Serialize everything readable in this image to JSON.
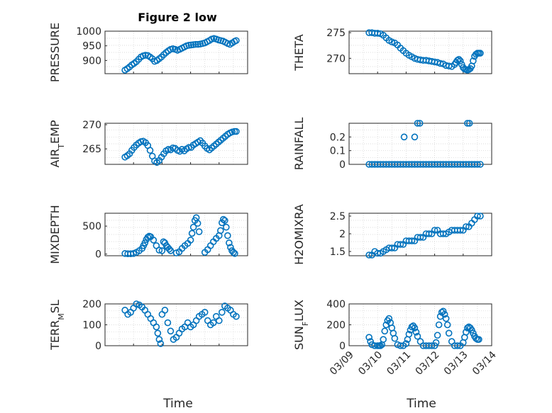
{
  "figure": {
    "title": "Figure 2 low",
    "xlabel": "Time",
    "marker_color": "#0072BD"
  },
  "chart_data": [
    {
      "type": "scatter",
      "ylabel": "PRESSURE",
      "ylim": [
        855,
        1000
      ],
      "yticks": [
        "1000",
        "950",
        "900"
      ],
      "ytick_values": [
        1000,
        950,
        900
      ],
      "xlim": [
        0,
        5
      ],
      "xticks": [],
      "x": [
        0.7,
        0.78,
        0.86,
        0.94,
        1.02,
        1.1,
        1.18,
        1.26,
        1.34,
        1.42,
        1.5,
        1.58,
        1.66,
        1.74,
        1.82,
        1.9,
        1.98,
        2.06,
        2.14,
        2.22,
        2.3,
        2.38,
        2.46,
        2.54,
        2.62,
        2.7,
        2.78,
        2.86,
        2.94,
        3.02,
        3.1,
        3.18,
        3.26,
        3.34,
        3.42,
        3.5,
        3.58,
        3.66,
        3.74,
        3.82,
        3.9,
        3.98,
        4.06,
        4.14,
        4.22,
        4.3,
        4.38,
        4.46,
        4.54,
        4.6
      ],
      "y": [
        867,
        872,
        878,
        885,
        890,
        896,
        904,
        912,
        916,
        918,
        917,
        912,
        906,
        897,
        900,
        906,
        912,
        920,
        927,
        933,
        938,
        940,
        938,
        935,
        938,
        942,
        946,
        950,
        952,
        953,
        954,
        955,
        955,
        956,
        958,
        960,
        964,
        968,
        973,
        975,
        973,
        970,
        968,
        966,
        962,
        958,
        955,
        960,
        965,
        968
      ]
    },
    {
      "type": "scatter",
      "ylabel": "THETA",
      "ylim": [
        267,
        275.3
      ],
      "yticks": [
        "275",
        "270"
      ],
      "ytick_values": [
        275,
        270
      ],
      "xlim": [
        0,
        5
      ],
      "xticks": [],
      "x": [
        0.7,
        0.8,
        0.9,
        1.0,
        1.1,
        1.2,
        1.3,
        1.4,
        1.5,
        1.6,
        1.7,
        1.8,
        1.9,
        2.0,
        2.1,
        2.2,
        2.3,
        2.4,
        2.5,
        2.6,
        2.7,
        2.8,
        2.9,
        3.0,
        3.1,
        3.2,
        3.3,
        3.4,
        3.5,
        3.6,
        3.7,
        3.75,
        3.8,
        3.85,
        3.9,
        3.95,
        4.0,
        4.05,
        4.1,
        4.15,
        4.2,
        4.25,
        4.3,
        4.35,
        4.4,
        4.45,
        4.5,
        4.55,
        4.6
      ],
      "y": [
        275,
        275,
        274.9,
        274.9,
        274.8,
        274.5,
        274,
        273.5,
        273.2,
        273,
        272.6,
        272,
        271.5,
        271,
        270.6,
        270.3,
        270,
        269.8,
        269.7,
        269.6,
        269.6,
        269.5,
        269.4,
        269.3,
        269.2,
        269,
        268.9,
        268.6,
        268.5,
        268.4,
        268.8,
        269.2,
        269.6,
        269.8,
        269.5,
        268.8,
        268.2,
        267.9,
        267.8,
        267.7,
        267.8,
        268,
        268.5,
        269.5,
        270.4,
        270.8,
        271,
        271,
        271
      ]
    },
    {
      "type": "scatter",
      "ylabel": "AIR_TEMP",
      "ylim": [
        261.8,
        270.3
      ],
      "yticks": [
        "270",
        "265"
      ],
      "ytick_values": [
        270,
        265
      ],
      "xlim": [
        0,
        5
      ],
      "xticks": [],
      "x": [
        0.7,
        0.78,
        0.86,
        0.94,
        1.02,
        1.1,
        1.18,
        1.26,
        1.34,
        1.42,
        1.5,
        1.58,
        1.66,
        1.74,
        1.82,
        1.9,
        1.98,
        2.06,
        2.14,
        2.22,
        2.3,
        2.38,
        2.46,
        2.54,
        2.62,
        2.7,
        2.78,
        2.86,
        2.94,
        3.02,
        3.1,
        3.18,
        3.26,
        3.34,
        3.42,
        3.5,
        3.58,
        3.66,
        3.74,
        3.82,
        3.9,
        3.98,
        4.06,
        4.14,
        4.22,
        4.3,
        4.38,
        4.46,
        4.54,
        4.6
      ],
      "y": [
        263.3,
        263.6,
        264,
        264.7,
        265.3,
        265.8,
        266.2,
        266.5,
        266.6,
        266.3,
        265.7,
        264.7,
        263.5,
        262.5,
        262.2,
        262.6,
        263.3,
        264,
        264.6,
        264.9,
        264.8,
        265.2,
        265.1,
        264.7,
        264.5,
        264.9,
        264.6,
        265,
        265.3,
        265.3,
        265.8,
        266.1,
        266.4,
        266.7,
        266.2,
        265.6,
        265.1,
        264.8,
        265.2,
        265.6,
        266,
        266.4,
        266.8,
        267.2,
        267.6,
        268,
        268.3,
        268.5,
        268.6,
        268.6
      ]
    },
    {
      "type": "scatter",
      "ylabel": "RAINFALL",
      "ylim": [
        0,
        0.3
      ],
      "yticks": [
        "0.2",
        "0.1",
        "0"
      ],
      "ytick_values": [
        0.2,
        0.1,
        0
      ],
      "xlim": [
        0,
        5
      ],
      "xticks": [],
      "x": [
        0.7,
        0.8,
        0.9,
        1.0,
        1.1,
        1.2,
        1.3,
        1.4,
        1.5,
        1.6,
        1.7,
        1.8,
        1.9,
        2.0,
        2.1,
        2.2,
        2.3,
        2.4,
        2.5,
        2.6,
        2.7,
        2.8,
        2.9,
        3.0,
        3.1,
        3.2,
        3.3,
        3.4,
        3.5,
        3.6,
        3.7,
        3.8,
        3.9,
        4.0,
        4.1,
        4.2,
        4.3,
        4.4,
        4.5,
        4.6,
        1.93,
        2.3,
        2.4,
        2.48,
        4.15,
        4.22
      ],
      "y": [
        0,
        0,
        0,
        0,
        0,
        0,
        0,
        0,
        0,
        0,
        0,
        0,
        0,
        0,
        0,
        0,
        0,
        0,
        0,
        0,
        0,
        0,
        0,
        0,
        0,
        0,
        0,
        0,
        0,
        0,
        0,
        0,
        0,
        0,
        0,
        0,
        0,
        0,
        0,
        0,
        0.2,
        0.2,
        0.3,
        0.3,
        0.3,
        0.3
      ]
    },
    {
      "type": "scatter",
      "ylabel": "MIXDEPTH",
      "ylim": [
        -30,
        730
      ],
      "yticks": [
        "500",
        "0"
      ],
      "ytick_values": [
        500,
        0
      ],
      "xlim": [
        0,
        5
      ],
      "xticks": [],
      "x": [
        0.7,
        0.8,
        0.9,
        1.0,
        1.1,
        1.2,
        1.3,
        1.35,
        1.4,
        1.45,
        1.5,
        1.55,
        1.6,
        1.7,
        1.8,
        1.9,
        2.0,
        2.05,
        2.1,
        2.15,
        2.2,
        2.25,
        2.3,
        2.5,
        2.6,
        2.7,
        2.8,
        2.9,
        3.0,
        3.05,
        3.1,
        3.15,
        3.2,
        3.25,
        3.3,
        3.5,
        3.6,
        3.7,
        3.8,
        3.9,
        4.0,
        4.05,
        4.1,
        4.15,
        4.2,
        4.25,
        4.3,
        4.35,
        4.4,
        4.45,
        4.5,
        4.55
      ],
      "y": [
        10,
        5,
        5,
        10,
        30,
        60,
        100,
        150,
        200,
        260,
        300,
        320,
        310,
        250,
        150,
        70,
        60,
        220,
        200,
        150,
        120,
        90,
        60,
        20,
        40,
        100,
        150,
        190,
        250,
        370,
        480,
        600,
        650,
        550,
        400,
        30,
        80,
        150,
        220,
        280,
        330,
        420,
        560,
        620,
        600,
        480,
        330,
        200,
        120,
        60,
        30,
        10
      ]
    },
    {
      "type": "scatter",
      "ylabel": "H2OMIXRA",
      "ylim": [
        1.38,
        2.58
      ],
      "yticks": [
        "2.5",
        "2",
        "1.5"
      ],
      "ytick_values": [
        2.5,
        2,
        1.5
      ],
      "xlim": [
        0,
        5
      ],
      "xticks": [],
      "x": [
        0.7,
        0.8,
        0.9,
        1.0,
        1.1,
        1.2,
        1.3,
        1.4,
        1.5,
        1.6,
        1.7,
        1.8,
        1.9,
        2.0,
        2.1,
        2.2,
        2.3,
        2.4,
        2.5,
        2.6,
        2.7,
        2.8,
        2.9,
        3.0,
        3.1,
        3.2,
        3.3,
        3.4,
        3.5,
        3.6,
        3.7,
        3.8,
        3.9,
        4.0,
        4.1,
        4.2,
        4.3,
        4.4,
        4.5,
        4.6
      ],
      "y": [
        1.4,
        1.4,
        1.5,
        1.45,
        1.45,
        1.5,
        1.55,
        1.6,
        1.6,
        1.6,
        1.7,
        1.7,
        1.7,
        1.8,
        1.8,
        1.8,
        1.8,
        1.9,
        1.9,
        1.9,
        2.0,
        2.0,
        2.0,
        2.1,
        2.1,
        2.0,
        2.0,
        2.0,
        2.05,
        2.1,
        2.1,
        2.1,
        2.1,
        2.1,
        2.2,
        2.2,
        2.3,
        2.4,
        2.5,
        2.5
      ]
    },
    {
      "type": "scatter",
      "ylabel": "TERR_MSL",
      "ylim": [
        0,
        200
      ],
      "yticks": [
        "200",
        "100",
        "0"
      ],
      "ytick_values": [
        200,
        100,
        0
      ],
      "xlim": [
        0,
        5
      ],
      "xticks": [],
      "x": [
        0.7,
        0.8,
        0.9,
        1.0,
        1.1,
        1.2,
        1.3,
        1.4,
        1.5,
        1.6,
        1.7,
        1.8,
        1.85,
        1.9,
        1.95,
        2.0,
        2.1,
        2.2,
        2.3,
        2.4,
        2.5,
        2.6,
        2.7,
        2.8,
        2.9,
        3.0,
        3.1,
        3.2,
        3.3,
        3.4,
        3.5,
        3.6,
        3.7,
        3.8,
        3.9,
        4.0,
        4.1,
        4.2,
        4.3,
        4.4,
        4.5,
        4.6
      ],
      "y": [
        170,
        150,
        160,
        180,
        200,
        195,
        185,
        170,
        150,
        130,
        110,
        90,
        60,
        30,
        10,
        150,
        170,
        110,
        70,
        30,
        40,
        60,
        80,
        90,
        110,
        90,
        100,
        120,
        140,
        150,
        160,
        120,
        100,
        110,
        140,
        120,
        160,
        190,
        180,
        170,
        150,
        140
      ]
    },
    {
      "type": "scatter",
      "ylabel": "SUN_FLUX",
      "ylim": [
        0,
        400
      ],
      "yticks": [
        "400",
        "200",
        "0"
      ],
      "ytick_values": [
        400,
        200,
        0
      ],
      "xlim": [
        0,
        5
      ],
      "xticks": [
        "03/09",
        "03/10",
        "03/11",
        "03/12",
        "03/13",
        "03/14"
      ],
      "tick_values": [
        0,
        1,
        2,
        3,
        4,
        5
      ],
      "x": [
        0.7,
        0.75,
        0.8,
        0.9,
        1.0,
        1.05,
        1.1,
        1.15,
        1.2,
        1.25,
        1.3,
        1.35,
        1.4,
        1.45,
        1.5,
        1.55,
        1.6,
        1.7,
        1.8,
        1.9,
        2.0,
        2.05,
        2.1,
        2.15,
        2.2,
        2.25,
        2.3,
        2.35,
        2.4,
        2.5,
        2.6,
        2.7,
        2.8,
        2.9,
        3.0,
        3.05,
        3.1,
        3.15,
        3.2,
        3.25,
        3.3,
        3.35,
        3.4,
        3.45,
        3.5,
        3.6,
        3.7,
        3.8,
        3.9,
        4.0,
        4.05,
        4.1,
        4.15,
        4.2,
        4.25,
        4.3,
        4.35,
        4.4,
        4.45,
        4.5,
        4.55
      ],
      "y": [
        80,
        40,
        10,
        0,
        0,
        0,
        0,
        10,
        60,
        140,
        200,
        240,
        260,
        220,
        170,
        120,
        70,
        10,
        0,
        0,
        20,
        60,
        110,
        150,
        180,
        190,
        170,
        130,
        90,
        40,
        0,
        0,
        0,
        0,
        0,
        30,
        100,
        200,
        280,
        320,
        330,
        300,
        260,
        200,
        120,
        40,
        0,
        0,
        0,
        30,
        80,
        130,
        170,
        180,
        170,
        150,
        120,
        90,
        70,
        60,
        60
      ]
    }
  ]
}
